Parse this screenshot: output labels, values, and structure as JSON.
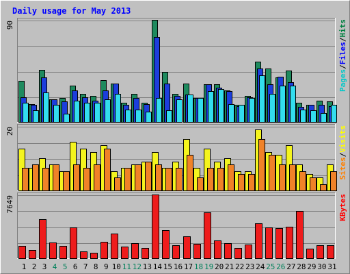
{
  "chart_data": {
    "type": "bar",
    "title": "Daily usage for May 2013",
    "categories": [
      "1",
      "2",
      "3",
      "4",
      "5",
      "6",
      "7",
      "8",
      "9",
      "10",
      "11",
      "12",
      "13",
      "14",
      "15",
      "16",
      "17",
      "18",
      "19",
      "20",
      "21",
      "22",
      "23",
      "24",
      "25",
      "26",
      "27",
      "28",
      "29",
      "30",
      "31"
    ],
    "weekend_days": [
      "4",
      "5",
      "11",
      "12",
      "18",
      "19",
      "25",
      "26"
    ],
    "grid": true,
    "panels": [
      {
        "id": "hits-panel",
        "max_label": "90",
        "ymax": 90,
        "legend": [
          {
            "name": "Pages",
            "color": "#00c8c8"
          },
          {
            "name": "Files",
            "color": "#0000ff"
          },
          {
            "name": "Hits",
            "color": "#008040"
          }
        ],
        "series": [
          {
            "name": "Hits",
            "color": "#1e8a5e",
            "values": [
              36,
              16,
              46,
              20,
              21,
              32,
              25,
              23,
              37,
              34,
              17,
              25,
              17,
              90,
              44,
              25,
              34,
              21,
              33,
              33,
              28,
              15,
              23,
              53,
              47,
              39,
              45,
              17,
              15,
              19,
              18
            ]
          },
          {
            "name": "Files",
            "color": "#1c3edc",
            "values": [
              22,
              15,
              39,
              20,
              18,
              28,
              22,
              19,
              28,
              34,
              15,
              21,
              16,
              75,
              34,
              23,
              24,
              21,
              33,
              30,
              27,
              14,
              22,
              47,
              33,
              40,
              35,
              13,
              15,
              15,
              14
            ]
          },
          {
            "name": "Pages",
            "color": "#33ddee",
            "values": [
              17,
              10,
              26,
              15,
              7,
              19,
              17,
              17,
              20,
              25,
              11,
              11,
              9,
              21,
              10,
              20,
              24,
              21,
              27,
              29,
              16,
              15,
              21,
              41,
              25,
              32,
              32,
              11,
              10,
              8,
              15
            ]
          }
        ]
      },
      {
        "id": "visits-panel",
        "max_label": "20",
        "ymax": 20,
        "legend": [
          {
            "name": "Sites",
            "color": "#ff8000"
          },
          {
            "name": "Visits",
            "color": "#ffff00"
          }
        ],
        "series": [
          {
            "name": "Visits",
            "color": "#f4f41e",
            "values": [
              13,
              7,
              10,
              8,
              6,
              15,
              13,
              12,
              14,
              6,
              7,
              8,
              9,
              12,
              7,
              9,
              16,
              7,
              13,
              9,
              10,
              6,
              6,
              19,
              12,
              11,
              14,
              8,
              5,
              4,
              8
            ]
          },
          {
            "name": "Sites",
            "color": "#f08228",
            "values": [
              7,
              8,
              7,
              8,
              6,
              8,
              7,
              8,
              13,
              4,
              7,
              8,
              9,
              8,
              7,
              7,
              11,
              4,
              7,
              7,
              8,
              5,
              5,
              16,
              11,
              8,
              8,
              6,
              4,
              2,
              6
            ]
          }
        ]
      },
      {
        "id": "kbytes-panel",
        "max_label": "7649",
        "ymax": 7649,
        "legend": [
          {
            "name": "KBytes",
            "color": "#ff0000"
          }
        ],
        "series": [
          {
            "name": "KBytes",
            "color": "#ee1c1c",
            "values": [
              1450,
              950,
              4650,
              1900,
              1450,
              3700,
              850,
              650,
              2000,
              3000,
              1400,
              1800,
              1250,
              7649,
              3400,
              1600,
              2650,
              1700,
              5500,
              2150,
              1800,
              1250,
              1650,
              4200,
              3700,
              3600,
              3800,
              5700,
              1150,
              1550,
              1550
            ]
          }
        ]
      }
    ]
  }
}
